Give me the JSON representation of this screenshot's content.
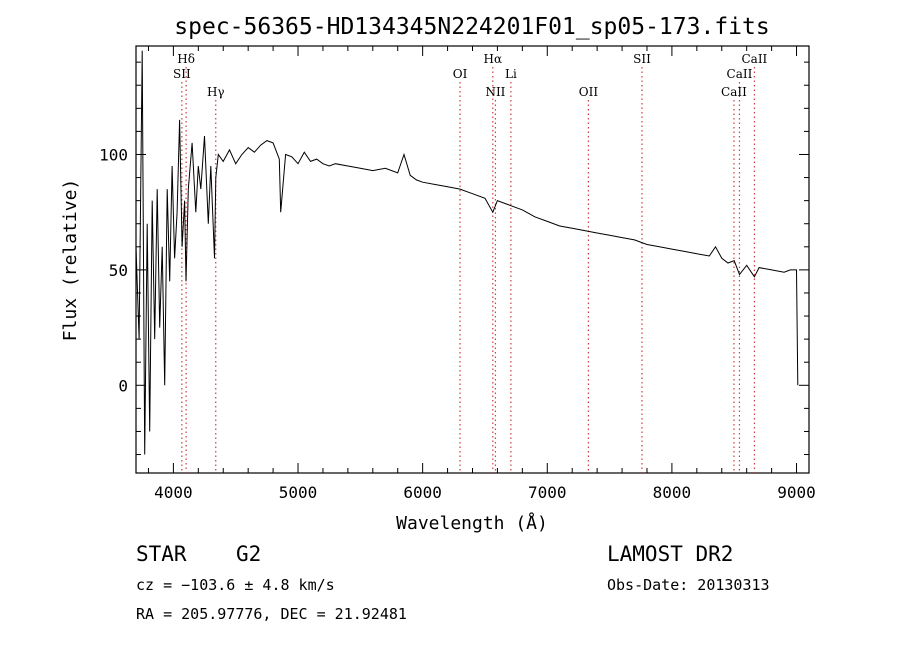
{
  "chart_data": {
    "type": "line",
    "title": "spec-56365-HD134345N224201F01_sp05-173.fits",
    "xlabel": "Wavelength (Å)",
    "ylabel": "Flux (relative)",
    "xlim": [
      3700,
      9100
    ],
    "ylim": [
      -38,
      147
    ],
    "x_ticks": [
      4000,
      5000,
      6000,
      7000,
      8000,
      9000
    ],
    "y_ticks": [
      0,
      50,
      100
    ],
    "grid": false,
    "series": [
      {
        "x": [
          3700,
          3725,
          3750,
          3770,
          3790,
          3810,
          3830,
          3850,
          3870,
          3890,
          3910,
          3930,
          3950,
          3970,
          3990,
          4010,
          4030,
          4050,
          4070,
          4090,
          4101,
          4120,
          4150,
          4180,
          4200,
          4220,
          4250,
          4280,
          4300,
          4330,
          4340,
          4360,
          4400,
          4450,
          4500,
          4550,
          4600,
          4650,
          4700,
          4750,
          4800,
          4850,
          4861,
          4900,
          4950,
          5000,
          5050,
          5100,
          5150,
          5200,
          5250,
          5300,
          5400,
          5500,
          5600,
          5700,
          5800,
          5850,
          5900,
          5950,
          6000,
          6100,
          6200,
          6300,
          6400,
          6500,
          6563,
          6600,
          6700,
          6800,
          6900,
          7000,
          7100,
          7200,
          7300,
          7400,
          7500,
          7600,
          7700,
          7800,
          7900,
          8000,
          8100,
          8200,
          8300,
          8350,
          8400,
          8450,
          8500,
          8542,
          8600,
          8662,
          8700,
          8800,
          8900,
          8950,
          8990,
          9000,
          9010
        ],
        "y": [
          60,
          20,
          145,
          -30,
          70,
          -20,
          80,
          20,
          85,
          25,
          60,
          0,
          85,
          45,
          95,
          55,
          75,
          115,
          60,
          80,
          45,
          85,
          105,
          75,
          95,
          85,
          108,
          70,
          95,
          55,
          90,
          100,
          97,
          102,
          96,
          100,
          103,
          101,
          104,
          106,
          105,
          98,
          75,
          100,
          99,
          96,
          101,
          97,
          98,
          96,
          95,
          96,
          95,
          94,
          93,
          94,
          92,
          100,
          91,
          89,
          88,
          87,
          86,
          85,
          83,
          81,
          75,
          80,
          78,
          76,
          73,
          71,
          69,
          68,
          67,
          66,
          65,
          64,
          63,
          61,
          60,
          59,
          58,
          57,
          56,
          60,
          55,
          53,
          54,
          48,
          52,
          47,
          51,
          50,
          49,
          50,
          50,
          50,
          0
        ]
      }
    ],
    "annotations": [
      {
        "label": "Hδ",
        "x": 4102,
        "row": 1
      },
      {
        "label": "SII",
        "x": 4068,
        "row": 2
      },
      {
        "label": "Hγ",
        "x": 4340,
        "row": 3
      },
      {
        "label": "OI",
        "x": 6300,
        "row": 2
      },
      {
        "label": "Hα",
        "x": 6563,
        "row": 1
      },
      {
        "label": "Li",
        "x": 6708,
        "row": 2
      },
      {
        "label": "NII",
        "x": 6584,
        "row": 3
      },
      {
        "label": "OII",
        "x": 7330,
        "row": 3
      },
      {
        "label": "SII",
        "x": 7760,
        "row": 1
      },
      {
        "label": "CaII",
        "x": 8662,
        "row": 1
      },
      {
        "label": "CaII",
        "x": 8542,
        "row": 2
      },
      {
        "label": "CaII",
        "x": 8498,
        "row": 3
      }
    ],
    "line_marker_color": "#d04040"
  },
  "info": {
    "object_class": "STAR",
    "subclass": "G2",
    "survey": "LAMOST DR2",
    "cz": "cz = −103.6 ± 4.8 km/s",
    "obs_date": "Obs-Date: 20130313",
    "coords": "RA = 205.97776, DEC =  21.92481"
  }
}
